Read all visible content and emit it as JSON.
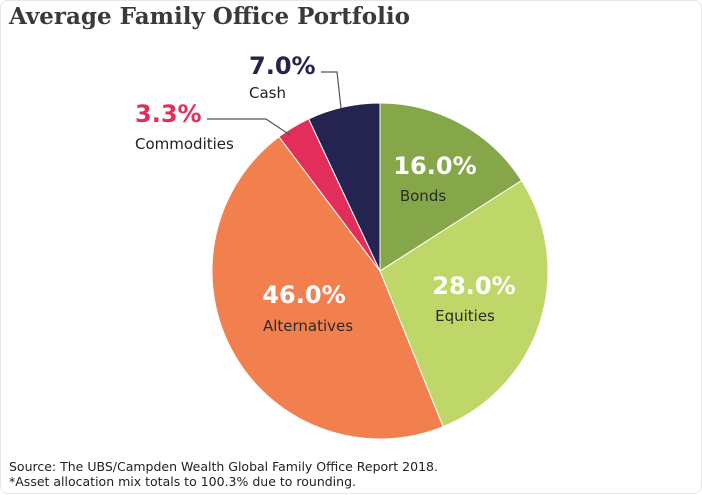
{
  "chart_data": {
    "type": "pie",
    "title": "Average Family Office Portfolio",
    "slices": [
      {
        "label": "Bonds",
        "value": 16.0,
        "value_label": "16.0%",
        "color": "#86a64a"
      },
      {
        "label": "Equities",
        "value": 28.0,
        "value_label": "28.0%",
        "color": "#bfd769"
      },
      {
        "label": "Alternatives",
        "value": 46.0,
        "value_label": "46.0%",
        "color": "#f27f4e"
      },
      {
        "label": "Commodities",
        "value": 3.3,
        "value_label": "3.3%",
        "color": "#e32d5a"
      },
      {
        "label": "Cash",
        "value": 7.0,
        "value_label": "7.0%",
        "color": "#25234f"
      }
    ],
    "start_angle": "12 o'clock",
    "direction": "clockwise",
    "legend": "none"
  },
  "footnotes": {
    "source": "Source: The UBS/Campden Wealth Global Family Office Report 2018.",
    "note": "*Asset allocation mix totals to 100.3% due to rounding."
  }
}
